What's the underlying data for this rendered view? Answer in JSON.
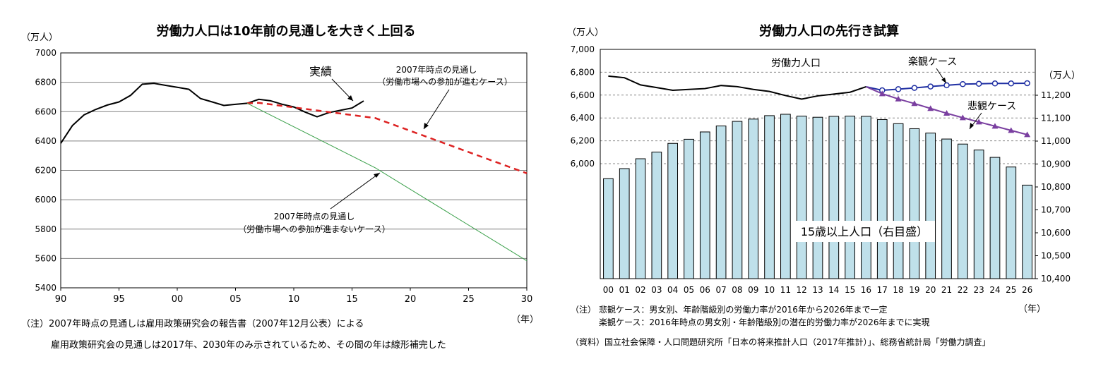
{
  "chart_data": [
    {
      "type": "line",
      "title": "労働力人口は10年前の見通しを大きく上回る",
      "ylabel": "（万人）",
      "xlabel": "（年）",
      "ylim": [
        5400,
        7000
      ],
      "yticks": [
        5400,
        5600,
        5800,
        6000,
        6200,
        6400,
        6600,
        6800,
        7000
      ],
      "xlim": [
        1990,
        2030
      ],
      "xticks": [
        {
          "value": 1990,
          "label": "90"
        },
        {
          "value": 1995,
          "label": "95"
        },
        {
          "value": 2000,
          "label": "00"
        },
        {
          "value": 2005,
          "label": "05"
        },
        {
          "value": 2010,
          "label": "10"
        },
        {
          "value": 2015,
          "label": "15"
        },
        {
          "value": 2020,
          "label": "20"
        },
        {
          "value": 2025,
          "label": "25"
        },
        {
          "value": 2030,
          "label": "30"
        }
      ],
      "grid": true,
      "series": [
        {
          "name": "実績",
          "color": "#000000",
          "style": "solid",
          "x": [
            1990,
            1991,
            1992,
            1993,
            1994,
            1995,
            1996,
            1997,
            1998,
            1999,
            2000,
            2001,
            2002,
            2003,
            2004,
            2005,
            2006,
            2007,
            2008,
            2009,
            2010,
            2011,
            2012,
            2013,
            2014,
            2015,
            2016
          ],
          "y": [
            6384,
            6505,
            6578,
            6615,
            6645,
            6666,
            6711,
            6787,
            6793,
            6779,
            6766,
            6752,
            6689,
            6666,
            6642,
            6650,
            6657,
            6684,
            6674,
            6650,
            6632,
            6596,
            6565,
            6593,
            6609,
            6625,
            6673
          ]
        },
        {
          "name": "2007年時点の見通し（労働市場への参加が進むケース）",
          "color": "#dd2222",
          "style": "dashed",
          "x": [
            2006,
            2007,
            2017,
            2030
          ],
          "y": [
            6657,
            6660,
            6556,
            6180
          ]
        },
        {
          "name": "2007年時点の見通し（労働市場への参加が進まないケース）",
          "color": "#3aa04a",
          "style": "thin",
          "x": [
            2006,
            2017,
            2030
          ],
          "y": [
            6657,
            6217,
            5584
          ]
        }
      ],
      "annotations": {
        "actual": "実績",
        "case_up_line1": "2007年時点の見通し",
        "case_up_line2": "（労働市場への参加が進むケース）",
        "case_down_line1": "2007年時点の見通し",
        "case_down_line2": "（労働市場への参加が進まないケース）"
      }
    },
    {
      "type": "bar+line",
      "title": "労働力人口の先行き試算",
      "ylabel_left": "（万人）",
      "ylabel_right": "（万人）",
      "xlabel": "（年）",
      "categories": [
        "00",
        "01",
        "02",
        "03",
        "04",
        "05",
        "06",
        "07",
        "08",
        "09",
        "10",
        "11",
        "12",
        "13",
        "14",
        "15",
        "16",
        "17",
        "18",
        "19",
        "20",
        "21",
        "22",
        "23",
        "24",
        "25",
        "26"
      ],
      "ylim_left": [
        6000,
        7000
      ],
      "yticks_left": [
        "6,000",
        "6,200",
        "6,400",
        "6,600",
        "6,800",
        "7,000"
      ],
      "yticks_left_values": [
        6000,
        6200,
        6400,
        6600,
        6800,
        7000
      ],
      "ylim_right": [
        10400,
        11400
      ],
      "yticks_right": [
        "10,400",
        "10,500",
        "10,600",
        "10,700",
        "10,800",
        "10,900",
        "11,000",
        "11,100",
        "11,200"
      ],
      "yticks_right_values": [
        10400,
        10500,
        10600,
        10700,
        10800,
        10900,
        11000,
        11100,
        11200
      ],
      "grid": true,
      "bars": {
        "name": "15歳以上人口（右目盛）",
        "axis": "right",
        "color": "#bfe0ea",
        "values": [
          10836,
          10880,
          10923,
          10952,
          10990,
          11008,
          11040,
          11066,
          11086,
          11096,
          11111,
          11117,
          11109,
          11104,
          11108,
          11109,
          11108,
          11094,
          11076,
          11054,
          11035,
          11009,
          10987,
          10961,
          10929,
          10887,
          10808
        ]
      },
      "lines": [
        {
          "name": "労働力人口",
          "axis": "left",
          "color": "#000000",
          "marker": "none",
          "start_index": 0,
          "values": [
            6766,
            6752,
            6689,
            6666,
            6642,
            6650,
            6657,
            6684,
            6674,
            6650,
            6632,
            6596,
            6565,
            6593,
            6609,
            6625,
            6673
          ]
        },
        {
          "name": "楽観ケース",
          "axis": "left",
          "color": "#1f2fa3",
          "marker": "circle",
          "start_index": 16,
          "values": [
            6673,
            6642,
            6652,
            6663,
            6675,
            6686,
            6696,
            6699,
            6702,
            6702,
            6704
          ]
        },
        {
          "name": "悲観ケース",
          "axis": "left",
          "color": "#7a3fa0",
          "marker": "triangle",
          "start_index": 16,
          "values": [
            6673,
            6612,
            6566,
            6526,
            6483,
            6441,
            6402,
            6365,
            6328,
            6291,
            6254
          ]
        }
      ],
      "labels": {
        "labor": "労働力人口",
        "optimistic": "楽観ケース",
        "pessimistic": "悲観ケース",
        "population": "15歳以上人口（右目盛）"
      }
    }
  ],
  "notes": {
    "left_note1": "（注）2007年時点の見通しは雇用政策研究会の報告書（2007年12月公表）による",
    "left_note2": "雇用政策研究会の見通しは2017年、2030年のみ示されているため、その間の年は線形補完した",
    "right_note_label": "（注）",
    "right_note1": "悲観ケース：男女別、年齢階級別の労働力率が2016年から2026年まで一定",
    "right_note2": "楽観ケース：2016年時点の男女別・年齢階級別の潜在的労働力率が2026年までに実現",
    "right_source": "（資料）国立社会保障・人口問題研究所「日本の将来推計人口（2017年推計）」、総務省統計局「労働力調査」"
  }
}
